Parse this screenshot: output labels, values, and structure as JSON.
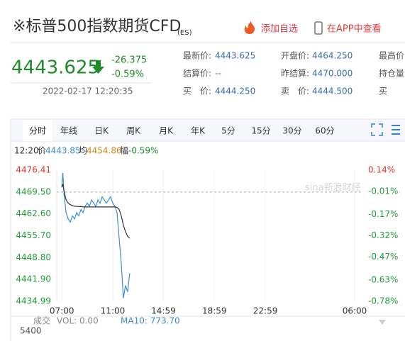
{
  "header": {
    "title": "※标普500指数期货CFD",
    "code": "(ES)",
    "actions": [
      "添加自选",
      "在APP中查看"
    ]
  },
  "quote": {
    "price": "4443.625",
    "change": "-26.375",
    "change_pct": "-0.59%",
    "time": "2022-02-17 12:20:35"
  },
  "stats": [
    [
      {
        "label": "最新价:",
        "value": "4443.625"
      },
      {
        "label": "开盘价:",
        "value": "4464.250"
      },
      {
        "label": "最高价:"
      }
    ],
    [
      {
        "label": "结算价:",
        "value": "--"
      },
      {
        "label": "昨结算:",
        "value": "4470.000"
      },
      {
        "label": "持仓量:"
      }
    ],
    [
      {
        "label": "买　价:",
        "value": "4444.250"
      },
      {
        "label": "卖　价:",
        "value": "4444.500"
      },
      {
        "label": "买"
      }
    ]
  ],
  "tabs": [
    "分时",
    "年线",
    "日K",
    "周K",
    "月K",
    "年K",
    "5分",
    "15分",
    "30分",
    "60分"
  ],
  "info": {
    "time": "12:20",
    "price_label": "价",
    "price": "4443.85",
    "avg_label": "均",
    "avg": "4454.86",
    "pct_label": "幅",
    "pct": "-0.59%"
  },
  "watermark": "sina新浪财经",
  "chart_data": {
    "type": "line",
    "x": [
      420,
      425,
      430,
      440,
      450,
      460,
      470,
      480,
      490,
      500,
      510,
      520,
      530,
      540,
      550,
      560,
      570,
      580,
      590,
      600,
      610,
      620,
      630,
      640,
      650,
      660,
      670,
      680,
      690,
      700,
      710,
      720,
      730,
      740
    ],
    "series": [
      {
        "color": "#3a8fd6",
        "values": [
          4471,
          4475.5,
          4469,
          4463,
          4461,
          4460,
          4462,
          4461,
          4463,
          4462,
          4464,
          4463,
          4465,
          4466,
          4465,
          4467,
          4466,
          4465,
          4467,
          4466,
          4468,
          4467,
          4466,
          4467,
          4468,
          4466,
          4465,
          4463,
          4455,
          4447,
          4436,
          4440,
          4438,
          4443.85
        ]
      },
      {
        "color": "#333333",
        "values": [
          4471,
          4472,
          4470,
          4467,
          4466,
          4465.5,
          4465.2,
          4465,
          4465,
          4464.9,
          4464.9,
          4464.8,
          4464.8,
          4464.8,
          4464.8,
          4464.8,
          4464.8,
          4464.8,
          4464.8,
          4464.8,
          4464.8,
          4464.8,
          4464.8,
          4464.8,
          4464.8,
          4464.8,
          4464.8,
          4464.7,
          4464,
          4462,
          4459,
          4457,
          4455.5,
          4454.86
        ]
      }
    ],
    "xlim": [
      396,
      1840
    ],
    "xticks": [
      {
        "value": 420,
        "label": "07:00"
      },
      {
        "value": 660,
        "label": "11:00"
      },
      {
        "value": 899,
        "label": "14:59"
      },
      {
        "value": 1139,
        "label": "18:59"
      },
      {
        "value": 1379,
        "label": "22:59"
      },
      {
        "value": 1800,
        "label": "06:00"
      }
    ],
    "ylim": [
      4434.99,
      4476.41
    ],
    "yticks": [
      4476.41,
      {
        "value": 4469.5,
        "label": "4469.50"
      },
      {
        "value": 4462.6,
        "label": "4462.60"
      },
      {
        "value": 4455.7,
        "label": "4455.70"
      },
      {
        "value": 4448.8,
        "label": "4448.80"
      },
      {
        "value": 4441.9,
        "label": "4441.90"
      },
      4434.99
    ],
    "y2lim": [
      -0.78,
      0.14
    ],
    "y2ticks": [
      {
        "value": 0.14,
        "label": "0.14%"
      },
      {
        "value": -0.01,
        "label": "-0.01%"
      },
      {
        "value": -0.17,
        "label": "-0.17%"
      },
      {
        "value": -0.32,
        "label": "-0.32%"
      },
      {
        "value": -0.47,
        "label": "-0.47%"
      },
      {
        "value": -0.63,
        "label": "-0.63%"
      },
      {
        "value": -0.78,
        "label": "-0.78%"
      }
    ]
  },
  "volume": {
    "label": "成交",
    "vol": "VOL: 0.00",
    "ma10": "MA10: 773.70",
    "max": "5400"
  }
}
